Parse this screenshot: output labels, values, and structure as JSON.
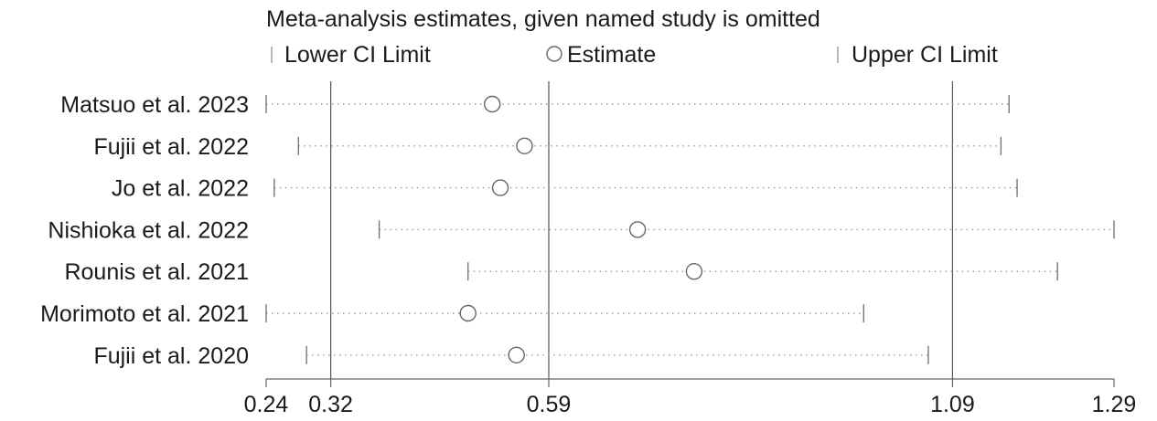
{
  "chart_data": {
    "type": "scatter",
    "title": "Meta-analysis estimates, given named study is omitted",
    "legend": {
      "placement": "top",
      "entries": [
        {
          "name": "Lower CI Limit",
          "marker": "tick"
        },
        {
          "name": "Estimate",
          "marker": "circle"
        },
        {
          "name": "Upper CI Limit",
          "marker": "tick"
        }
      ]
    },
    "xlim": [
      0.24,
      1.29
    ],
    "xticks": [
      0.24,
      0.32,
      0.59,
      1.09,
      1.29
    ],
    "xtick_labels": [
      "0.24",
      "0.32",
      "0.59",
      "1.09",
      "1.29"
    ],
    "reference_lines": [
      0.32,
      0.59,
      1.09
    ],
    "grid": false,
    "studies": [
      {
        "label": "Matsuo et al. 2023",
        "lower": 0.24,
        "estimate": 0.52,
        "upper": 1.16
      },
      {
        "label": "Fujii et al. 2022",
        "lower": 0.28,
        "estimate": 0.56,
        "upper": 1.15
      },
      {
        "label": "Jo et al. 2022",
        "lower": 0.25,
        "estimate": 0.53,
        "upper": 1.17
      },
      {
        "label": "Nishioka et al. 2022",
        "lower": 0.38,
        "estimate": 0.7,
        "upper": 1.29
      },
      {
        "label": "Rounis et al. 2021",
        "lower": 0.49,
        "estimate": 0.77,
        "upper": 1.22
      },
      {
        "label": "Morimoto et al. 2021",
        "lower": 0.24,
        "estimate": 0.49,
        "upper": 0.98
      },
      {
        "label": "Fujii et al. 2020",
        "lower": 0.29,
        "estimate": 0.55,
        "upper": 1.06
      }
    ]
  }
}
